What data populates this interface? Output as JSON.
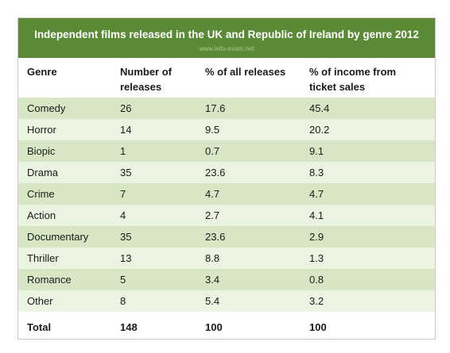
{
  "chart_data": {
    "type": "table",
    "title": "Independent films released in the UK and Republic of Ireland by genre 2012",
    "watermark": "www.ielts-exam.net",
    "columns": [
      "Genre",
      "Number of releases",
      "% of all releases",
      "% of income from ticket sales"
    ],
    "header_lines": [
      [
        "Genre"
      ],
      [
        "Number of",
        "releases"
      ],
      [
        "% of all releases"
      ],
      [
        "% of income from",
        "ticket sales"
      ]
    ],
    "rows": [
      [
        "Comedy",
        "26",
        "17.6",
        "45.4"
      ],
      [
        "Horror",
        "14",
        "9.5",
        "20.2"
      ],
      [
        "Biopic",
        "1",
        "0.7",
        "9.1"
      ],
      [
        "Drama",
        "35",
        "23.6",
        "8.3"
      ],
      [
        "Crime",
        "7",
        "4.7",
        "4.7"
      ],
      [
        "Action",
        "4",
        "2.7",
        "4.1"
      ],
      [
        "Documentary",
        "35",
        "23.6",
        "2.9"
      ],
      [
        "Thriller",
        "13",
        "8.8",
        "1.3"
      ],
      [
        "Romance",
        "5",
        "3.4",
        "0.8"
      ],
      [
        "Other",
        "8",
        "5.4",
        "3.2"
      ]
    ],
    "total": [
      "Total",
      "148",
      "100",
      "100"
    ],
    "colors": {
      "title_bar": "#5b8a36",
      "row_dark": "#d7e6c4",
      "row_light": "#ebf3e1"
    }
  }
}
